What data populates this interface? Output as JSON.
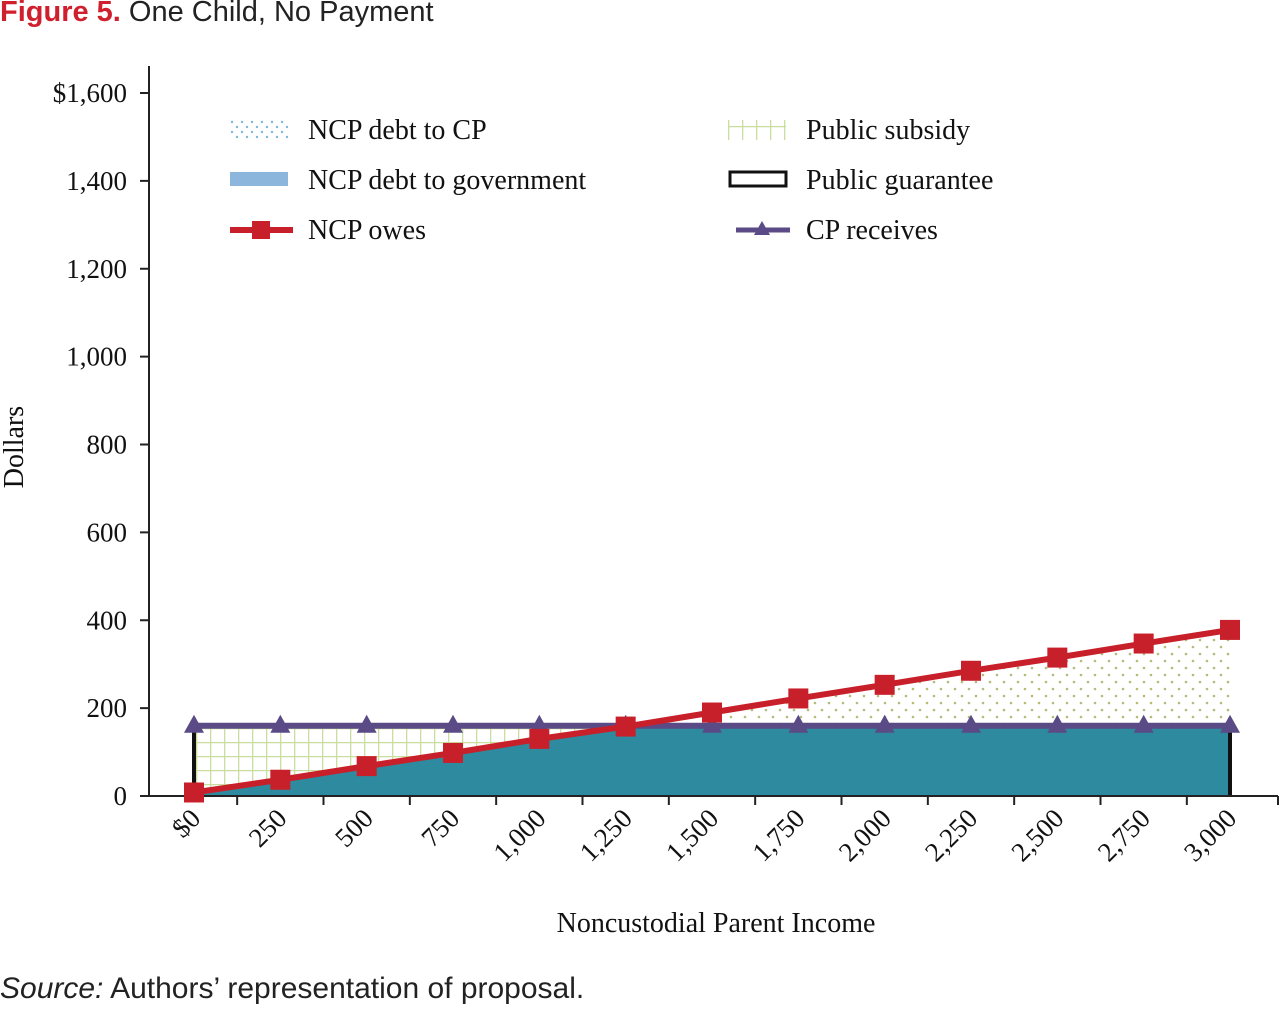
{
  "figure": {
    "number": "Figure 5.",
    "title": "One Child, No Payment",
    "source_prefix": "Source:",
    "source_text": " Authors’ representation of proposal."
  },
  "colors": {
    "ncp_owes": "#c8202a",
    "cp_receives": "#5a4a85",
    "debt_to_government": "#2e8a9f",
    "debt_to_cp_dots": "#b7ba7a",
    "public_subsidy_grid": "#c9dd9d",
    "public_guarantee": "#111111"
  },
  "chart_data": {
    "type": "line",
    "xlabel": "Noncustodial Parent Income",
    "ylabel": "Dollars",
    "ylim": [
      0,
      1600
    ],
    "ytick_values": [
      0,
      200,
      400,
      600,
      800,
      1000,
      1200,
      1400,
      1600
    ],
    "ytick_labels": [
      "0",
      "200",
      "400",
      "600",
      "800",
      "1,000",
      "1,200",
      "1,400",
      "$1,600"
    ],
    "categories": [
      "$0",
      "250",
      "500",
      "750",
      "1,000",
      "1,250",
      "1,500",
      "1,750",
      "2,000",
      "2,250",
      "2,500",
      "2,750",
      "3,000"
    ],
    "series": [
      {
        "name": "NCP owes",
        "values": [
          8,
          37,
          68,
          98,
          130,
          158,
          190,
          222,
          253,
          285,
          315,
          347,
          378
        ]
      },
      {
        "name": "CP receives",
        "values": [
          160,
          160,
          160,
          160,
          160,
          160,
          160,
          160,
          160,
          160,
          160,
          160,
          160
        ]
      }
    ],
    "legend": {
      "placement": "top",
      "entries": [
        {
          "label": "NCP debt to CP",
          "key": "dots"
        },
        {
          "label": "Public subsidy",
          "key": "grid"
        },
        {
          "label": "NCP  debt to government",
          "key": "fill"
        },
        {
          "label": "Public guarantee",
          "key": "box"
        },
        {
          "label": "NCP owes",
          "key": "square-line"
        },
        {
          "label": "CP receives",
          "key": "triangle-line"
        }
      ]
    },
    "grid": false
  }
}
